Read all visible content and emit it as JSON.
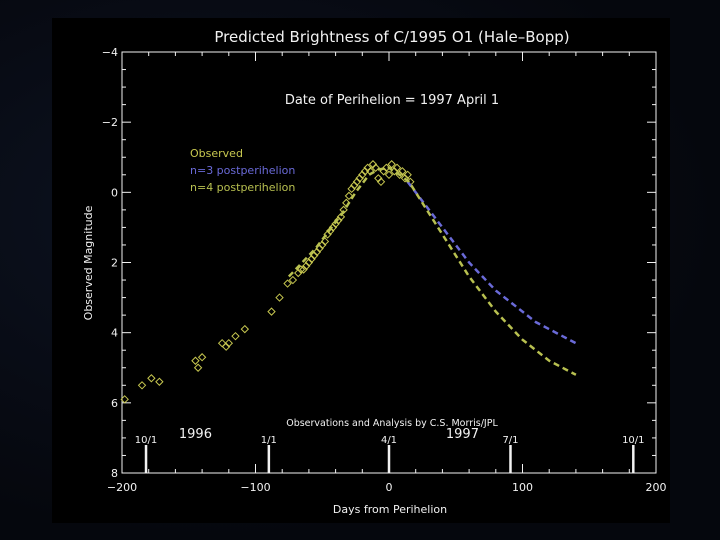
{
  "chart_data": {
    "type": "scatter",
    "title": "Predicted Brightness of C/1995 O1 (Hale–Bopp)",
    "annotation": "Date of Perihelion = 1997 April 1",
    "credit": "Observations and Analysis by C.S. Morris/JPL",
    "xlabel": "Days from Perihelion",
    "ylabel": "Observed Magnitude",
    "xlim": [
      -200,
      200
    ],
    "ylim": [
      8,
      -4
    ],
    "y_inverted": true,
    "x_ticks": [
      -200,
      -100,
      0,
      100,
      200
    ],
    "y_ticks": [
      -4,
      -2,
      0,
      2,
      4,
      6,
      8
    ],
    "tick_labels": {
      "x": [
        "−200",
        "−100",
        "0",
        "100",
        "200"
      ],
      "y": [
        "−4",
        "−2",
        "0",
        "2",
        "4",
        "6",
        "8"
      ]
    },
    "date_markers": [
      {
        "label": "10/1",
        "x": -182
      },
      {
        "label": "1/1",
        "x": -90
      },
      {
        "label": "4/1",
        "x": 0
      },
      {
        "label": "7/1",
        "x": 91
      },
      {
        "label": "10/1",
        "x": 183
      }
    ],
    "year_labels": [
      {
        "label": "1996",
        "x": -145
      },
      {
        "label": "1997",
        "x": 55
      }
    ],
    "legend_position": "upper-left",
    "series": [
      {
        "name": "Observed",
        "kind": "markers",
        "marker": "diamond",
        "color": "#c8c850",
        "x": [
          -198,
          -185,
          -178,
          -172,
          -145,
          -143,
          -140,
          -125,
          -122,
          -120,
          -115,
          -108,
          -88,
          -82,
          -76,
          -72,
          -68,
          -66,
          -64,
          -62,
          -60,
          -58,
          -56,
          -54,
          -52,
          -50,
          -48,
          -46,
          -44,
          -42,
          -40,
          -38,
          -36,
          -34,
          -32,
          -30,
          -28,
          -26,
          -24,
          -22,
          -20,
          -18,
          -16,
          -14,
          -12,
          -10,
          -8,
          -6,
          -4,
          -2,
          0,
          2,
          4,
          6,
          8,
          10,
          12,
          14,
          16
        ],
        "y": [
          5.9,
          5.5,
          5.3,
          5.4,
          4.8,
          5.0,
          4.7,
          4.3,
          4.4,
          4.3,
          4.1,
          3.9,
          3.4,
          3.0,
          2.6,
          2.5,
          2.3,
          2.2,
          2.2,
          2.1,
          2.0,
          1.9,
          1.8,
          1.7,
          1.6,
          1.5,
          1.4,
          1.2,
          1.1,
          1.0,
          0.9,
          0.8,
          0.7,
          0.5,
          0.3,
          0.1,
          -0.1,
          -0.2,
          -0.3,
          -0.4,
          -0.5,
          -0.6,
          -0.7,
          -0.6,
          -0.8,
          -0.7,
          -0.4,
          -0.3,
          -0.6,
          -0.7,
          -0.5,
          -0.8,
          -0.6,
          -0.7,
          -0.5,
          -0.6,
          -0.4,
          -0.5,
          -0.3
        ]
      },
      {
        "name": "n=3 postperihelion",
        "kind": "dashed",
        "color": "#6a6ad8",
        "x": [
          14,
          20,
          30,
          40,
          50,
          60,
          70,
          80,
          90,
          100,
          110,
          120,
          130,
          140
        ],
        "y": [
          -0.3,
          0.0,
          0.5,
          1.0,
          1.5,
          2.0,
          2.4,
          2.8,
          3.1,
          3.4,
          3.7,
          3.9,
          4.1,
          4.3
        ]
      },
      {
        "name": "n=4 postperihelion",
        "kind": "dashed",
        "color": "#b8c050",
        "x": [
          -75,
          -65,
          -55,
          -45,
          -35,
          -25,
          -15,
          -8,
          0,
          8,
          15,
          20,
          30,
          40,
          50,
          60,
          70,
          80,
          90,
          100,
          110,
          120,
          130,
          140
        ],
        "y": [
          2.4,
          2.0,
          1.6,
          1.1,
          0.6,
          0.0,
          -0.5,
          -0.65,
          -0.7,
          -0.5,
          -0.3,
          0.0,
          0.6,
          1.2,
          1.8,
          2.4,
          2.9,
          3.4,
          3.8,
          4.2,
          4.5,
          4.8,
          5.0,
          5.2
        ]
      }
    ]
  }
}
